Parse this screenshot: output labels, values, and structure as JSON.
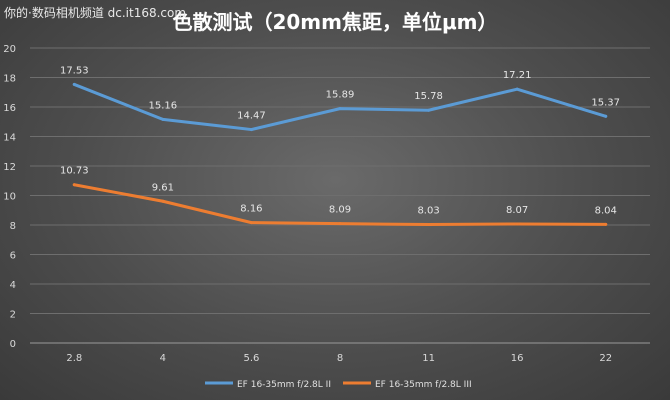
{
  "watermark": "你的·数码相机频道 dc.it168.com",
  "chart_data": {
    "type": "line",
    "title": "色散测试（20mm焦距，单位μm）",
    "xlabel": "",
    "ylabel": "",
    "categories": [
      "2.8",
      "4",
      "5.6",
      "8",
      "11",
      "16",
      "22"
    ],
    "ylim": [
      0,
      20
    ],
    "yticks": [
      0,
      2,
      4,
      6,
      8,
      10,
      12,
      14,
      16,
      18,
      20
    ],
    "grid": true,
    "legend_position": "bottom",
    "series": [
      {
        "name": "EF 16-35mm f/2.8L II",
        "color": "#5b9bd5",
        "values": [
          17.53,
          15.16,
          14.47,
          15.89,
          15.78,
          17.21,
          15.37
        ]
      },
      {
        "name": "EF 16-35mm f/2.8L III",
        "color": "#ed7d31",
        "values": [
          10.73,
          9.61,
          8.16,
          8.09,
          8.03,
          8.07,
          8.04
        ]
      }
    ]
  }
}
